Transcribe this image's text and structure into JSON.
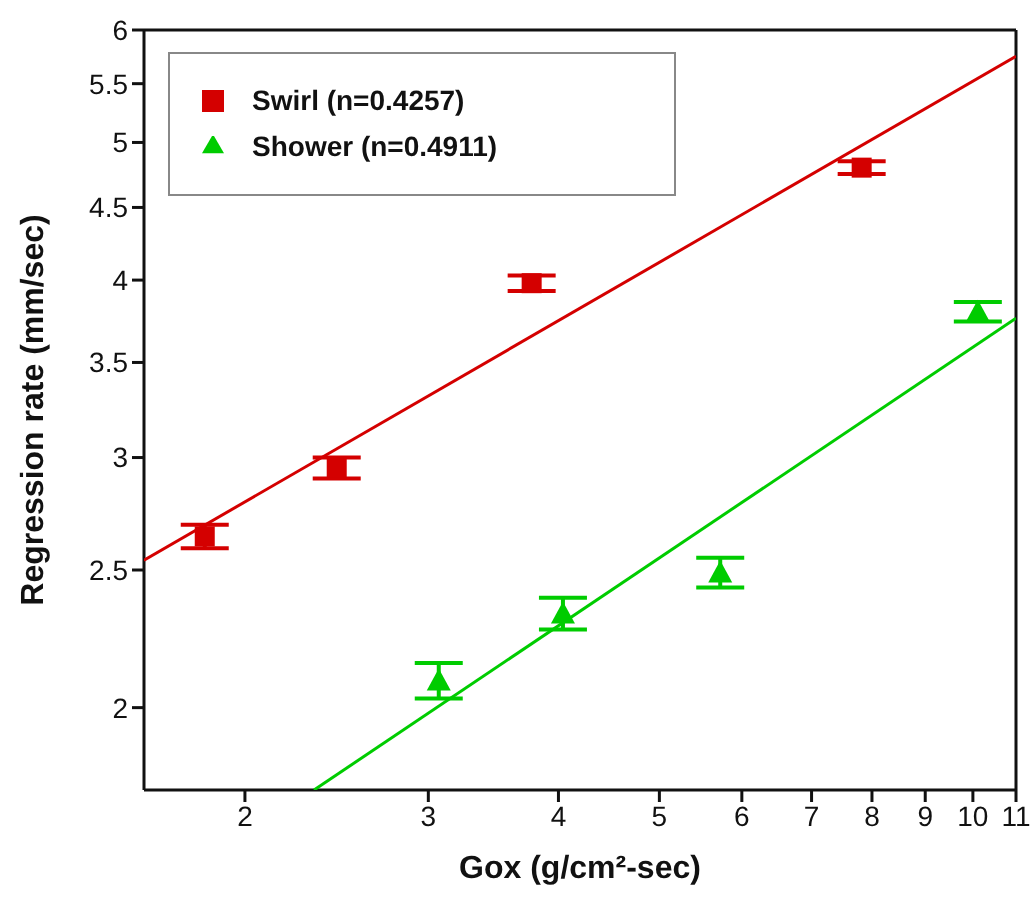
{
  "chart_data": {
    "type": "scatter",
    "xlabel": "Gox (g/cm²-sec)",
    "ylabel": "Regression rate (mm/sec)",
    "log": "xy",
    "legend": "top left",
    "xlim": [
      1.6,
      11
    ],
    "xticks": [
      2,
      3,
      4,
      5,
      6,
      7,
      8,
      9,
      10,
      11
    ],
    "ylim": [
      1.75,
      6
    ],
    "yticks": [
      2,
      2.5,
      3,
      3.5,
      4,
      4.5,
      5,
      5.5,
      6
    ],
    "series": [
      {
        "name": "Swirl (n=0.4257)",
        "color": "#d40000",
        "marker": "square",
        "x": [
          1.83,
          2.45,
          3.77,
          7.82
        ],
        "values": [
          2.64,
          2.95,
          3.98,
          4.8
        ],
        "errors": [
          0.05,
          0.05,
          0.05,
          0.05
        ]
      },
      {
        "name": "Shower (n=0.4911)",
        "color": "#00cc00",
        "marker": "triangle",
        "x": [
          3.07,
          4.04,
          5.72,
          10.11
        ],
        "values": [
          2.09,
          2.33,
          2.49,
          3.8
        ],
        "errors": [
          0.06,
          0.06,
          0.06,
          0.06
        ]
      },
      {
        "type": "line",
        "color": "#d40000",
        "marker": "none",
        "x": [
          1.6,
          11
        ],
        "values": [
          2.54,
          5.75
        ]
      },
      {
        "type": "line",
        "color": "#00cc00",
        "marker": "none",
        "x": [
          2.33,
          11
        ],
        "values": [
          1.75,
          3.76
        ]
      }
    ]
  }
}
